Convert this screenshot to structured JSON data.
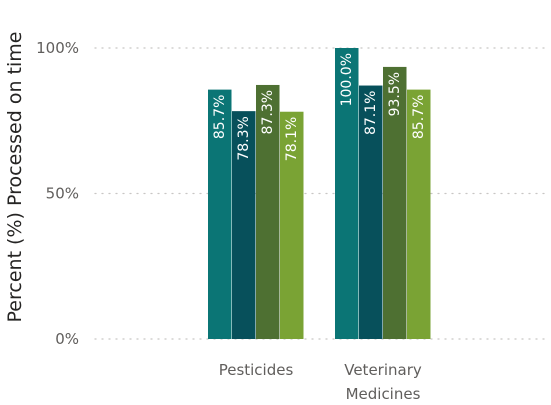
{
  "chart_data": {
    "type": "bar",
    "title": "",
    "ylabel": "Percent (%) Processed on time",
    "xlabel": "",
    "categories": [
      "Pesticides",
      "Veterinary Medicines"
    ],
    "category_lines": [
      [
        "Pesticides"
      ],
      [
        "Veterinary",
        "Medicines"
      ]
    ],
    "series": [
      {
        "color": "#0b7575",
        "values": [
          85.7,
          100.0
        ]
      },
      {
        "color": "#07505b",
        "values": [
          78.3,
          87.1
        ]
      },
      {
        "color": "#4e7032",
        "values": [
          87.3,
          93.5
        ]
      },
      {
        "color": "#7aa334",
        "values": [
          78.1,
          85.7
        ]
      }
    ],
    "data_labels": [
      [
        "85.7%",
        "100.0%"
      ],
      [
        "78.3%",
        "87.1%"
      ],
      [
        "87.3%",
        "93.5%"
      ],
      [
        "78.1%",
        "85.7%"
      ]
    ],
    "yticks": [
      0,
      50,
      100
    ],
    "ytick_labels": [
      "0%",
      "50%",
      "100%"
    ],
    "ylim": [
      0,
      100
    ],
    "grid": true,
    "legend": "none"
  }
}
